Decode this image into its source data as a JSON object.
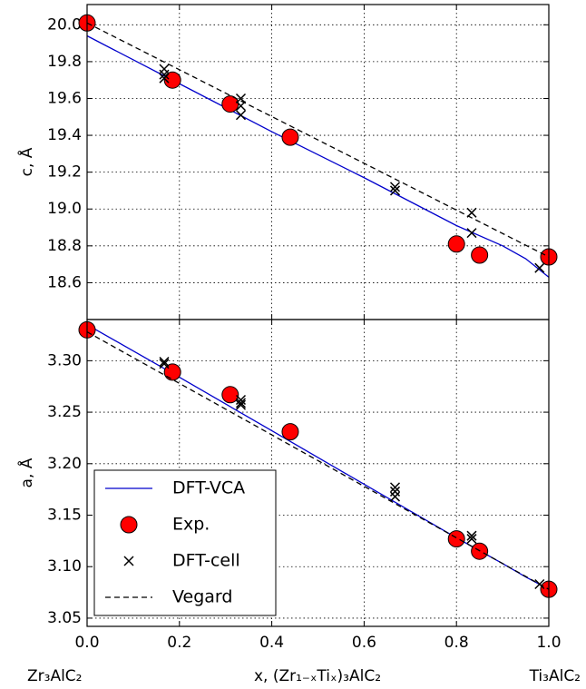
{
  "chart_data": [
    {
      "type": "line",
      "ylabel": "c, Å",
      "xlim": [
        0,
        1
      ],
      "xticks": [
        {
          "value": 0,
          "label": "0.0"
        },
        0.2,
        0.4,
        0.6,
        0.8,
        {
          "value": 1,
          "label": "1.0"
        }
      ],
      "ylim": [
        18.4,
        20.11
      ],
      "yticks": [
        18.6,
        18.8,
        {
          "value": 19,
          "label": "19.0"
        },
        19.2,
        19.4,
        19.6,
        19.8,
        {
          "value": 20,
          "label": "20.0"
        }
      ],
      "grid": true,
      "series": [
        {
          "color": "#0000cc",
          "line_style": "solid",
          "marker": null,
          "x": [
            0,
            0.2,
            0.4,
            0.6,
            0.8,
            0.9,
            0.95,
            1.0
          ],
          "values": [
            19.94,
            19.68,
            19.42,
            19.17,
            18.91,
            18.8,
            18.73,
            18.63
          ]
        },
        {
          "color": "#ff0000",
          "line_style": "none",
          "marker": "o",
          "x": [
            0,
            0.185,
            0.31,
            0.44,
            0.8,
            0.85,
            1.0
          ],
          "values": [
            20.01,
            19.7,
            19.57,
            19.39,
            18.81,
            18.75,
            18.74
          ]
        },
        {
          "color": "#000000",
          "line_style": "none",
          "marker": "x",
          "x": [
            0.167,
            0.167,
            0.167,
            0.333,
            0.333,
            0.333,
            0.667,
            0.667,
            0.833,
            0.833,
            0.98
          ],
          "values": [
            19.76,
            19.73,
            19.71,
            19.6,
            19.56,
            19.51,
            19.12,
            19.1,
            18.98,
            18.87,
            18.68
          ]
        },
        {
          "color": "#000000",
          "line_style": "dashed",
          "marker": null,
          "x": [
            0,
            1
          ],
          "values": [
            20.01,
            18.74
          ]
        }
      ]
    },
    {
      "type": "line",
      "ylabel": "a, Å",
      "xlabel": "x, (Zr₁₋ₓTiₓ)₃AlC₂",
      "annotations": [
        "Zr₃AlC₂",
        "Ti₃AlC₂"
      ],
      "xlim": [
        0,
        1
      ],
      "xticks": [
        {
          "value": 0,
          "label": "0.0"
        },
        0.2,
        0.4,
        0.6,
        0.8,
        {
          "value": 1,
          "label": "1.0"
        }
      ],
      "ylim": [
        3.042,
        3.34
      ],
      "yticks": [
        3.05,
        {
          "value": 3.1,
          "label": "3.10"
        },
        3.15,
        {
          "value": 3.2,
          "label": "3.20"
        },
        3.25,
        {
          "value": 3.3,
          "label": "3.30"
        }
      ],
      "grid": true,
      "legend": "lower left",
      "series": [
        {
          "name": "DFT-VCA",
          "color": "#0000cc",
          "line_style": "solid",
          "marker": null,
          "x": [
            0,
            0.2,
            0.4,
            0.6,
            0.8,
            0.9,
            0.95,
            1.0
          ],
          "values": [
            3.335,
            3.284,
            3.232,
            3.18,
            3.128,
            3.103,
            3.09,
            3.078
          ]
        },
        {
          "name": "Exp.",
          "color": "#ff0000",
          "line_style": "none",
          "marker": "o",
          "x": [
            0,
            0.185,
            0.31,
            0.44,
            0.8,
            0.85,
            1.0
          ],
          "values": [
            3.33,
            3.289,
            3.267,
            3.231,
            3.127,
            3.115,
            3.078
          ]
        },
        {
          "name": "DFT-cell",
          "color": "#000000",
          "line_style": "none",
          "marker": "x",
          "x": [
            0.167,
            0.167,
            0.333,
            0.333,
            0.333,
            0.667,
            0.667,
            0.667,
            0.833,
            0.833,
            0.98
          ],
          "values": [
            3.299,
            3.297,
            3.262,
            3.259,
            3.257,
            3.177,
            3.173,
            3.168,
            3.13,
            3.127,
            3.083
          ]
        },
        {
          "name": "Vegard",
          "color": "#000000",
          "line_style": "dashed",
          "marker": null,
          "x": [
            0,
            1
          ],
          "values": [
            3.328,
            3.078
          ]
        }
      ]
    }
  ]
}
